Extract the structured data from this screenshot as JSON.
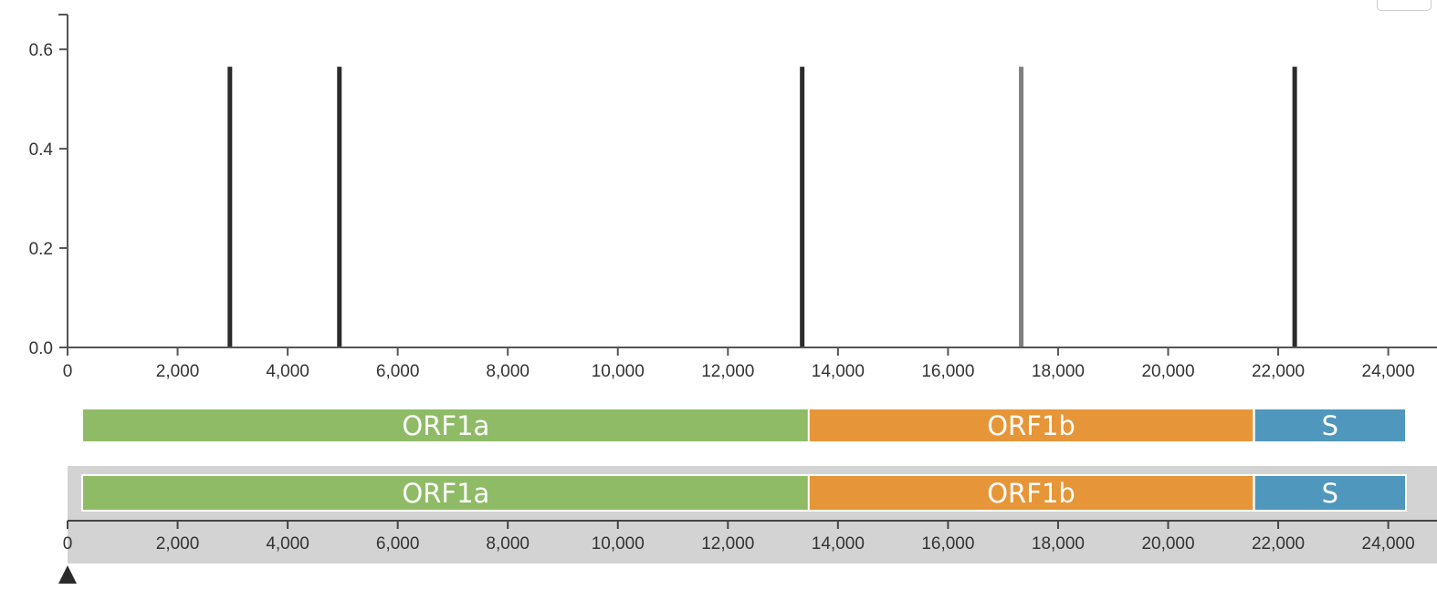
{
  "chart_data": {
    "type": "bar",
    "title": "",
    "xlabel": "",
    "ylabel": "",
    "xlim": [
      0,
      24300
    ],
    "ylim": [
      0,
      0.67
    ],
    "y_ticks": [
      0.0,
      0.2,
      0.4,
      0.6
    ],
    "y_tick_labels": [
      "0.0",
      "0.2",
      "0.4",
      "0.6"
    ],
    "x_ticks": [
      0,
      2000,
      4000,
      6000,
      8000,
      10000,
      12000,
      14000,
      16000,
      18000,
      20000,
      22000,
      24000
    ],
    "x_tick_labels": [
      "0",
      "2,000",
      "4,000",
      "6,000",
      "8,000",
      "10,000",
      "12,000",
      "14,000",
      "16,000",
      "18,000",
      "20,000",
      "22,000",
      "24,000"
    ],
    "grid": false,
    "series": [
      {
        "points": [
          {
            "x": 2950,
            "y": 0.565,
            "color": "#2b2b2b"
          },
          {
            "x": 4940,
            "y": 0.565,
            "color": "#2b2b2b"
          },
          {
            "x": 13350,
            "y": 0.565,
            "color": "#2b2b2b"
          },
          {
            "x": 17330,
            "y": 0.565,
            "color": "#7f7f7f"
          },
          {
            "x": 22300,
            "y": 0.565,
            "color": "#2b2b2b"
          }
        ]
      }
    ]
  },
  "gene_track": {
    "genes": [
      {
        "label": "ORF1a",
        "start": 266,
        "end": 13483,
        "color": "#8fbb67"
      },
      {
        "label": "ORF1b",
        "start": 13468,
        "end": 21555,
        "color": "#e69638"
      },
      {
        "label": "S",
        "start": 21563,
        "end": 25384,
        "color": "#4f97bc"
      }
    ]
  },
  "navigator": {
    "genes": [
      {
        "label": "ORF1a",
        "start": 266,
        "end": 13483,
        "color": "#8fbb67"
      },
      {
        "label": "ORF1b",
        "start": 13468,
        "end": 21555,
        "color": "#e69638"
      },
      {
        "label": "S",
        "start": 21563,
        "end": 25384,
        "color": "#4f97bc"
      }
    ],
    "x_ticks": [
      0,
      2000,
      4000,
      6000,
      8000,
      10000,
      12000,
      14000,
      16000,
      18000,
      20000,
      22000,
      24000
    ],
    "x_tick_labels": [
      "0",
      "2,000",
      "4,000",
      "6,000",
      "8,000",
      "10,000",
      "12,000",
      "14,000",
      "16,000",
      "18,000",
      "20,000",
      "22,000",
      "24,000"
    ],
    "background_color": "#d3d3d3",
    "handle_icon": "triangle-up-icon"
  }
}
